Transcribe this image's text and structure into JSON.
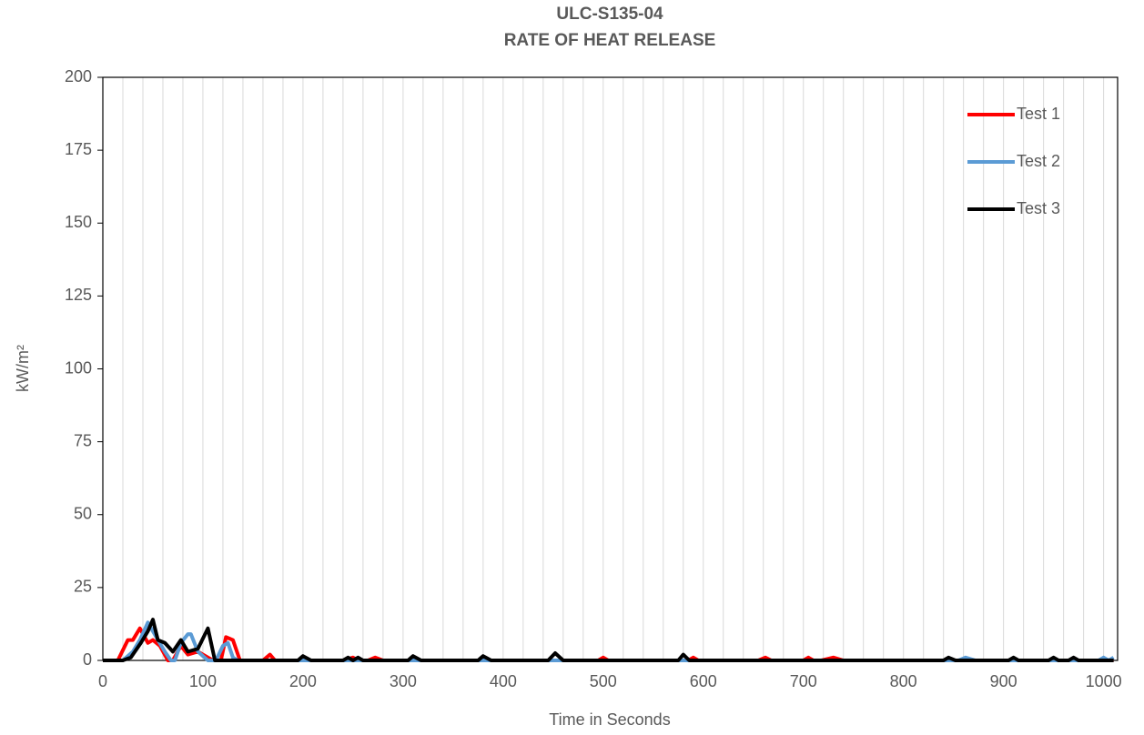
{
  "chart_data": {
    "type": "line",
    "title": "ULC-S135-04",
    "subtitle": "RATE OF HEAT RELEASE",
    "xlabel": "Time in Seconds",
    "ylabel": "kW/m²",
    "xlim": [
      0,
      1014
    ],
    "ylim": [
      0,
      200
    ],
    "xticks": [
      0,
      100,
      200,
      300,
      400,
      500,
      600,
      700,
      800,
      900,
      1000
    ],
    "yticks": [
      0,
      25,
      50,
      75,
      100,
      125,
      150,
      175,
      200
    ],
    "xgrid": [
      0,
      20,
      40,
      60,
      80,
      100,
      120,
      140,
      160,
      180,
      200,
      220,
      240,
      260,
      280,
      300,
      320,
      340,
      360,
      380,
      400,
      420,
      440,
      460,
      480,
      500,
      520,
      540,
      560,
      580,
      600,
      620,
      640,
      660,
      680,
      700,
      720,
      740,
      760,
      780,
      800,
      820,
      840,
      860,
      880,
      900,
      920,
      940,
      960,
      980,
      1000
    ],
    "grid": true,
    "legend": "upper right",
    "series": [
      {
        "name": "Test 1",
        "color": "#ff0000",
        "x": [
          0,
          15,
          25,
          30,
          37,
          45,
          50,
          57,
          65,
          70,
          78,
          85,
          95,
          110,
          118,
          123,
          130,
          137,
          160,
          167,
          172,
          240,
          250,
          255,
          265,
          272,
          280,
          495,
          500,
          505,
          585,
          590,
          595,
          655,
          662,
          668,
          700,
          705,
          710,
          718,
          730,
          740,
          1010
        ],
        "values": [
          0,
          0,
          7,
          7,
          11,
          6,
          7,
          5,
          0,
          0,
          5,
          2,
          3,
          0,
          0,
          8,
          7,
          0,
          0,
          2,
          0,
          0,
          1,
          0,
          0,
          1,
          0,
          0,
          1,
          0,
          0,
          1,
          0,
          0,
          1,
          0,
          0,
          1,
          0,
          0,
          1,
          0,
          0
        ]
      },
      {
        "name": "Test 2",
        "color": "#5b9bd5",
        "x": [
          0,
          20,
          30,
          37,
          45,
          55,
          62,
          68,
          72,
          78,
          85,
          88,
          95,
          105,
          113,
          120,
          125,
          130,
          135,
          855,
          862,
          872,
          995,
          1000,
          1005,
          1010
        ],
        "values": [
          0,
          0,
          3,
          7,
          13,
          7,
          3,
          0,
          0,
          6,
          9,
          9,
          3,
          0,
          0,
          5,
          6,
          1,
          0,
          0,
          1,
          0,
          0,
          1,
          0,
          1
        ]
      },
      {
        "name": "Test 3",
        "color": "#000000",
        "x": [
          0,
          20,
          28,
          38,
          45,
          50,
          55,
          62,
          70,
          78,
          85,
          95,
          105,
          112,
          195,
          200,
          208,
          240,
          245,
          250,
          255,
          260,
          305,
          310,
          318,
          375,
          380,
          388,
          445,
          452,
          460,
          575,
          580,
          586,
          840,
          845,
          852,
          905,
          910,
          915,
          945,
          950,
          955,
          965,
          970,
          975,
          1010
        ],
        "values": [
          0,
          0,
          1,
          6,
          10,
          14,
          7,
          6,
          3,
          7,
          3,
          4,
          11,
          0,
          0,
          1.5,
          0,
          0,
          1,
          0,
          1,
          0,
          0,
          1.5,
          0,
          0,
          1.5,
          0,
          0,
          2.5,
          0,
          0,
          2,
          0,
          0,
          1,
          0,
          0,
          1,
          0,
          0,
          1,
          0,
          0,
          1,
          0,
          0
        ]
      }
    ]
  }
}
